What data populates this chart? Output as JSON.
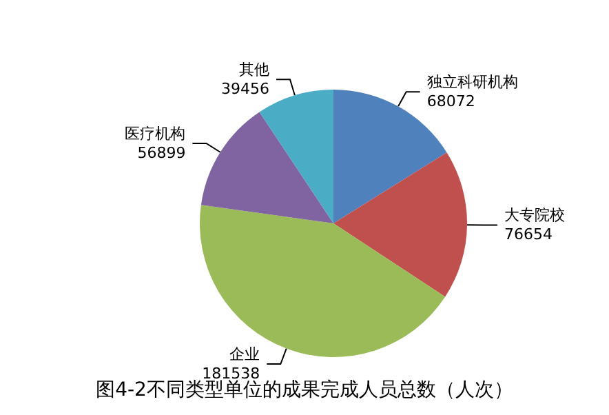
{
  "chart_data": {
    "type": "pie",
    "title": "图4-2不同类型单位的成果完成人员总数（人次）",
    "categories": [
      "独立科研机构",
      "大专院校",
      "企业",
      "医疗机构",
      "其他"
    ],
    "values": [
      68072,
      76654,
      181538,
      56899,
      39456
    ],
    "colors": [
      "#4f81bd",
      "#c0504d",
      "#9bbb59",
      "#8064a2",
      "#4bacc6"
    ],
    "data_labels": true,
    "legend": false
  }
}
